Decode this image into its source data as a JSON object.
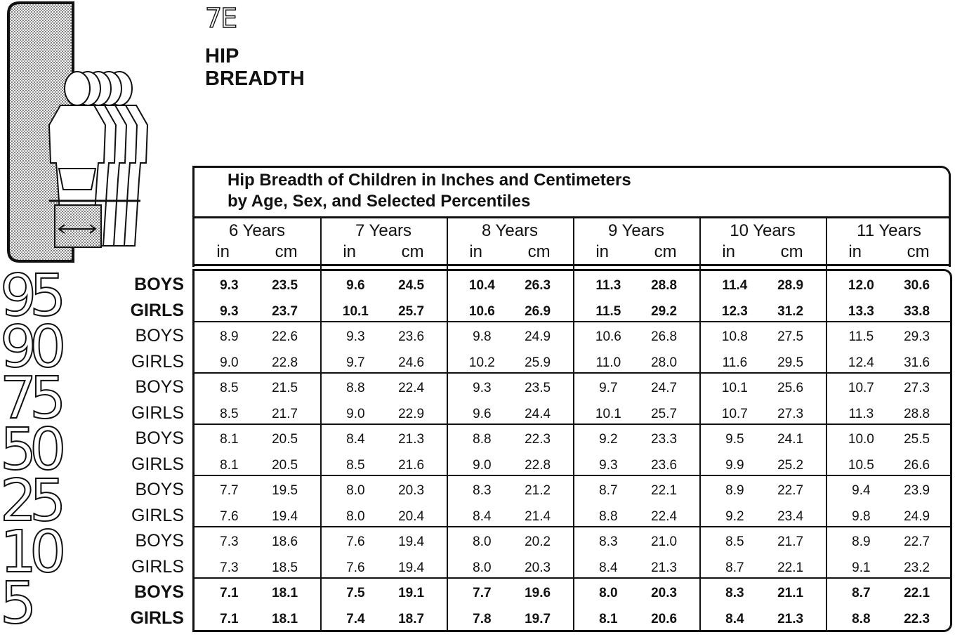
{
  "figure_number": "7E",
  "title_line1": "HIP",
  "title_line2": "BREADTH",
  "caption_line1": "Hip Breadth of Children in Inches and Centimeters",
  "caption_line2": "by Age, Sex, and Selected Percentiles",
  "unit_in": "in",
  "unit_cm": "cm",
  "ages": [
    "6 Years",
    "7 Years",
    "8 Years",
    "9 Years",
    "10 Years",
    "11 Years"
  ],
  "rows": [
    {
      "percentile": "95",
      "bold": true,
      "boys": {
        "label": "BOYS",
        "values": [
          "9.3",
          "23.5",
          "9.6",
          "24.5",
          "10.4",
          "26.3",
          "11.3",
          "28.8",
          "11.4",
          "28.9",
          "12.0",
          "30.6"
        ]
      },
      "girls": {
        "label": "GIRLS",
        "values": [
          "9.3",
          "23.7",
          "10.1",
          "25.7",
          "10.6",
          "26.9",
          "11.5",
          "29.2",
          "12.3",
          "31.2",
          "13.3",
          "33.8"
        ]
      }
    },
    {
      "percentile": "90",
      "bold": false,
      "boys": {
        "label": "BOYS",
        "values": [
          "8.9",
          "22.6",
          "9.3",
          "23.6",
          "9.8",
          "24.9",
          "10.6",
          "26.8",
          "10.8",
          "27.5",
          "11.5",
          "29.3"
        ]
      },
      "girls": {
        "label": "GIRLS",
        "values": [
          "9.0",
          "22.8",
          "9.7",
          "24.6",
          "10.2",
          "25.9",
          "11.0",
          "28.0",
          "11.6",
          "29.5",
          "12.4",
          "31.6"
        ]
      }
    },
    {
      "percentile": "75",
      "bold": false,
      "boys": {
        "label": "BOYS",
        "values": [
          "8.5",
          "21.5",
          "8.8",
          "22.4",
          "9.3",
          "23.5",
          "9.7",
          "24.7",
          "10.1",
          "25.6",
          "10.7",
          "27.3"
        ]
      },
      "girls": {
        "label": "GIRLS",
        "values": [
          "8.5",
          "21.7",
          "9.0",
          "22.9",
          "9.6",
          "24.4",
          "10.1",
          "25.7",
          "10.7",
          "27.3",
          "11.3",
          "28.8"
        ]
      }
    },
    {
      "percentile": "50",
      "bold": false,
      "boys": {
        "label": "BOYS",
        "values": [
          "8.1",
          "20.5",
          "8.4",
          "21.3",
          "8.8",
          "22.3",
          "9.2",
          "23.3",
          "9.5",
          "24.1",
          "10.0",
          "25.5"
        ]
      },
      "girls": {
        "label": "GIRLS",
        "values": [
          "8.1",
          "20.5",
          "8.5",
          "21.6",
          "9.0",
          "22.8",
          "9.3",
          "23.6",
          "9.9",
          "25.2",
          "10.5",
          "26.6"
        ]
      }
    },
    {
      "percentile": "25",
      "bold": false,
      "boys": {
        "label": "BOYS",
        "values": [
          "7.7",
          "19.5",
          "8.0",
          "20.3",
          "8.3",
          "21.2",
          "8.7",
          "22.1",
          "8.9",
          "22.7",
          "9.4",
          "23.9"
        ]
      },
      "girls": {
        "label": "GIRLS",
        "values": [
          "7.6",
          "19.4",
          "8.0",
          "20.4",
          "8.4",
          "21.4",
          "8.8",
          "22.4",
          "9.2",
          "23.4",
          "9.8",
          "24.9"
        ]
      }
    },
    {
      "percentile": "10",
      "bold": false,
      "boys": {
        "label": "BOYS",
        "values": [
          "7.3",
          "18.6",
          "7.6",
          "19.4",
          "8.0",
          "20.2",
          "8.3",
          "21.0",
          "8.5",
          "21.7",
          "8.9",
          "22.7"
        ]
      },
      "girls": {
        "label": "GIRLS",
        "values": [
          "7.3",
          "18.5",
          "7.6",
          "19.4",
          "8.0",
          "20.3",
          "8.4",
          "21.3",
          "8.7",
          "22.1",
          "9.1",
          "23.2"
        ]
      }
    },
    {
      "percentile": "5",
      "bold": true,
      "boys": {
        "label": "BOYS",
        "values": [
          "7.1",
          "18.1",
          "7.5",
          "19.1",
          "7.7",
          "19.6",
          "8.0",
          "20.3",
          "8.3",
          "21.1",
          "8.7",
          "22.1"
        ]
      },
      "girls": {
        "label": "GIRLS",
        "values": [
          "7.1",
          "18.1",
          "7.4",
          "18.7",
          "7.8",
          "19.7",
          "8.1",
          "20.6",
          "8.4",
          "21.3",
          "8.8",
          "22.3"
        ]
      }
    }
  ]
}
